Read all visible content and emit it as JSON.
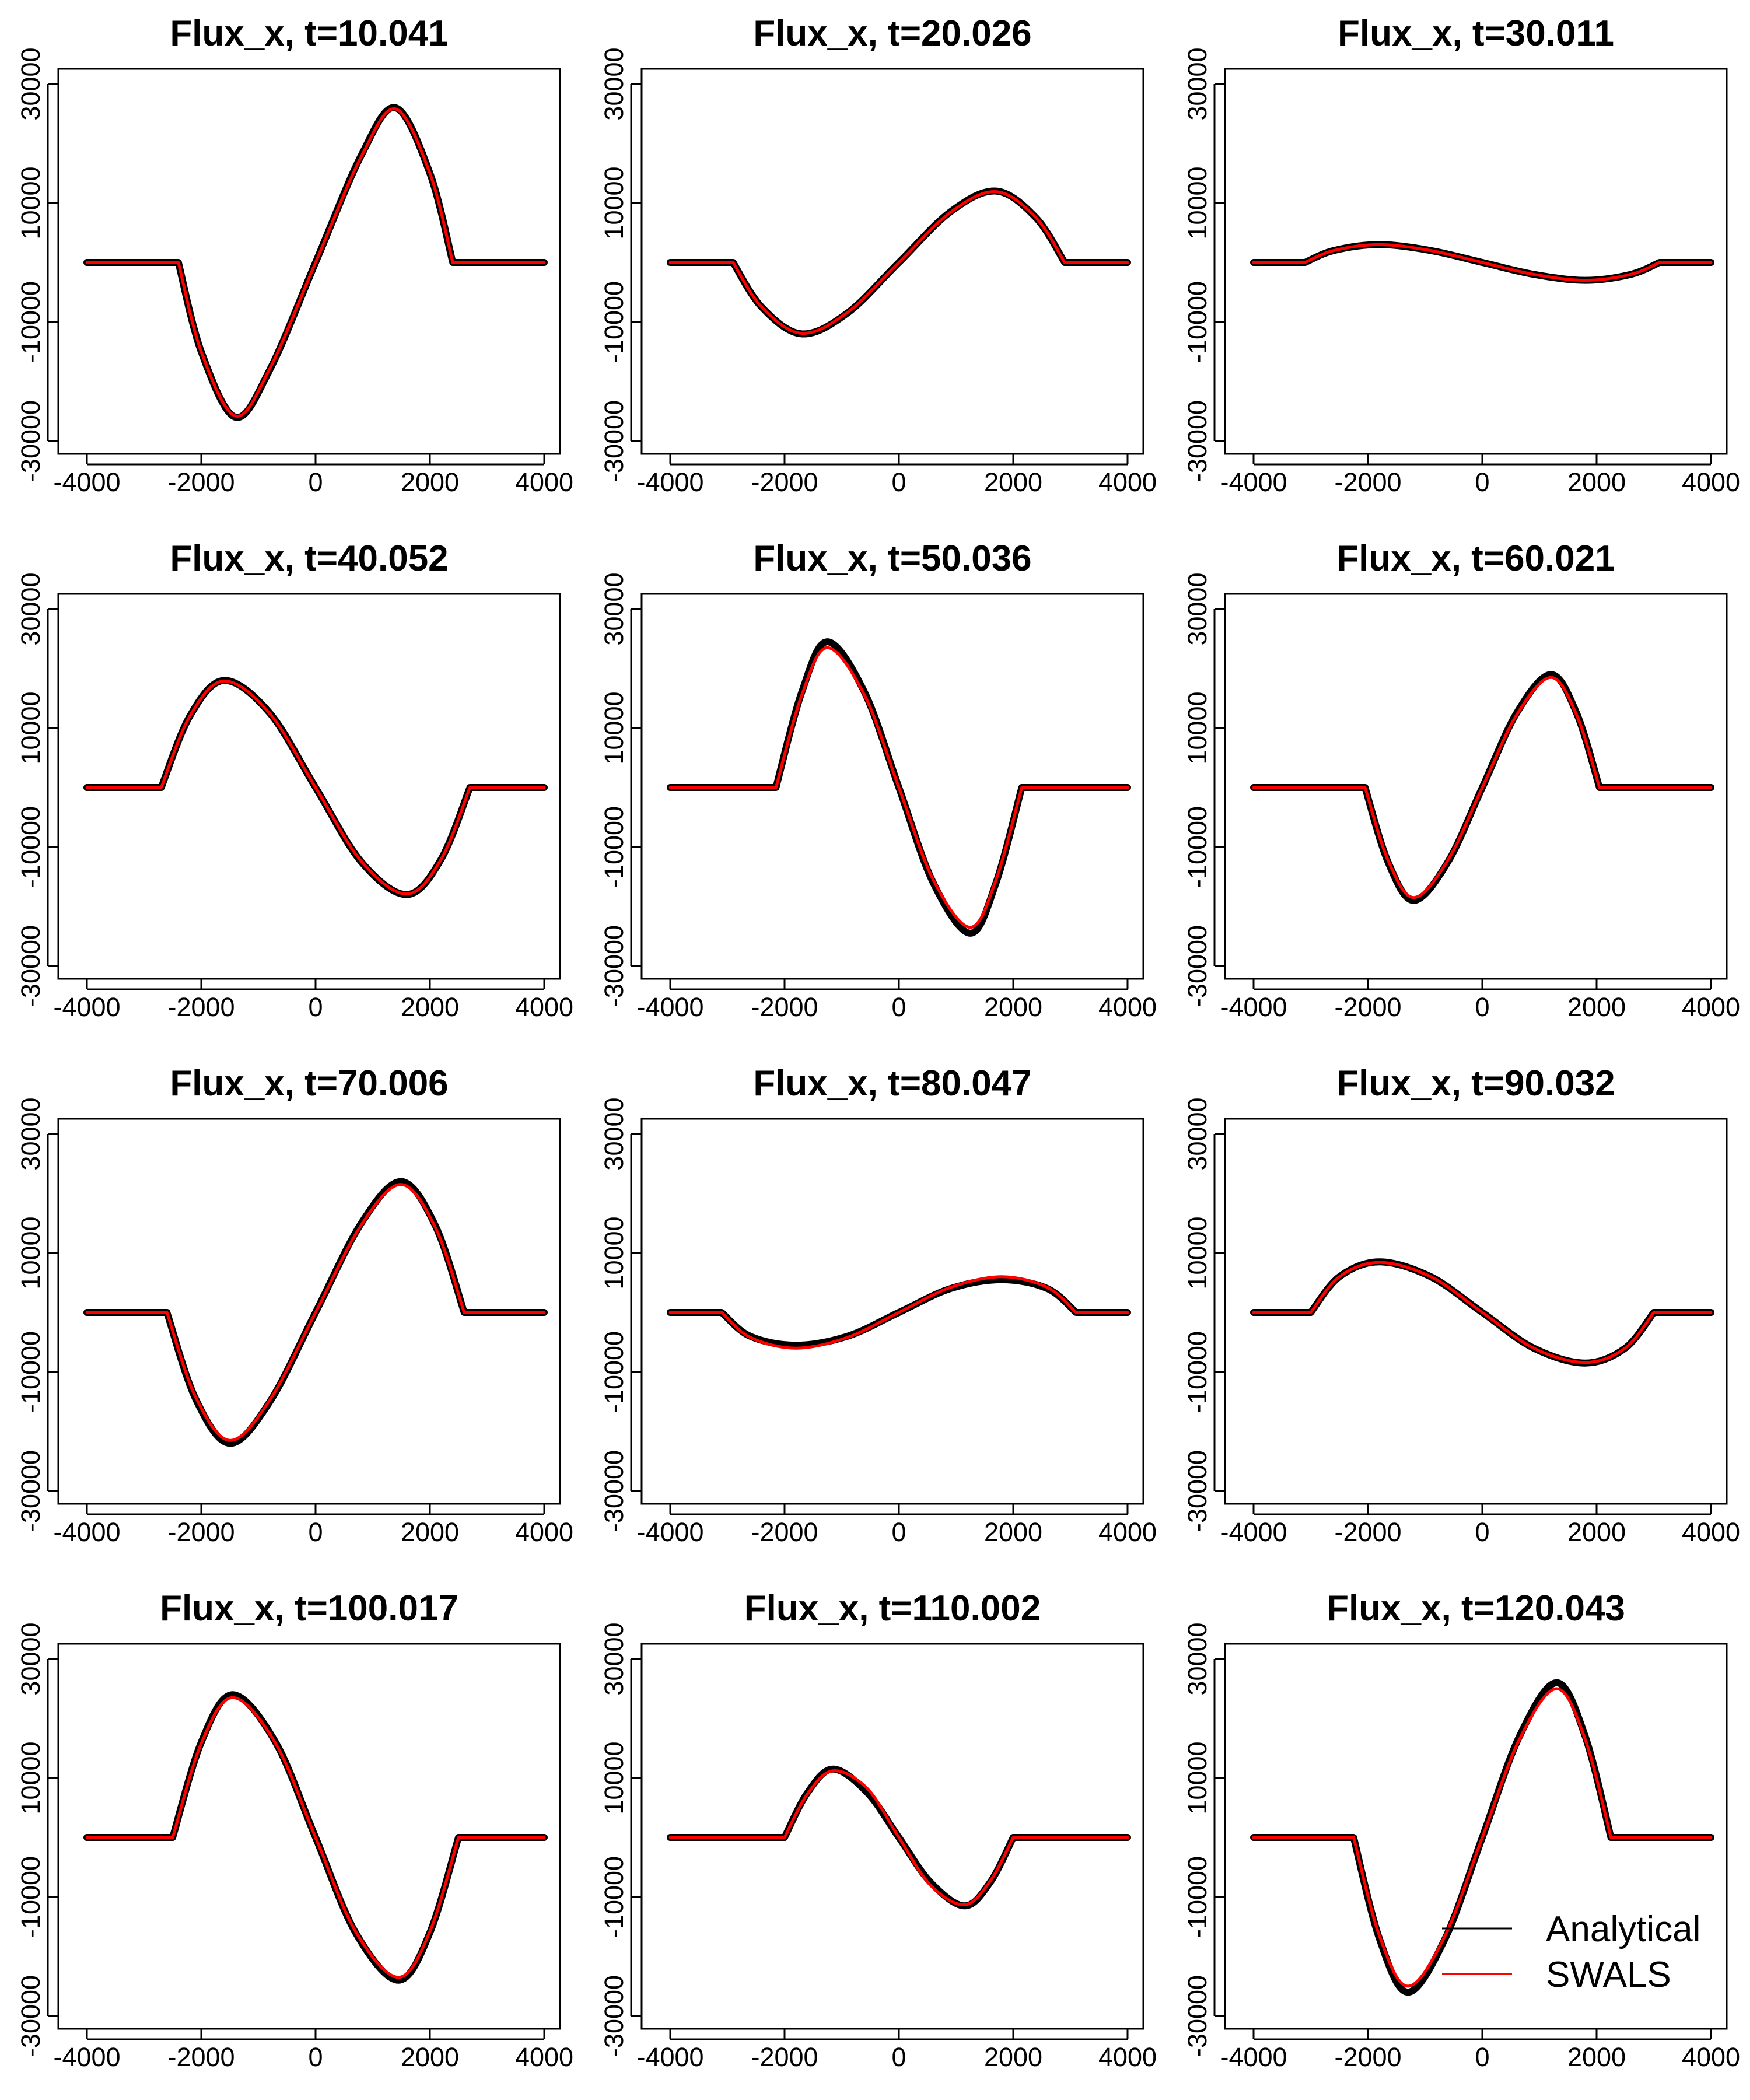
{
  "chart_data": [
    {
      "type": "line",
      "title": "Flux_x, t=10.041",
      "xticks": [
        -4000,
        -2000,
        0,
        2000,
        4000
      ],
      "yticks": [
        -30000,
        -10000,
        10000,
        30000
      ],
      "xlim": [
        -4000,
        4000
      ],
      "ylim": [
        -30000,
        30000
      ],
      "series": [
        {
          "name": "Analytical",
          "x": [
            -4000,
            -2400,
            -2000,
            -1400,
            -800,
            0,
            800,
            1400,
            2000,
            2400,
            4000
          ],
          "y": [
            0,
            0,
            -15000,
            -26000,
            -18000,
            0,
            18000,
            26000,
            15000,
            0,
            0
          ]
        },
        {
          "name": "SWALS",
          "x": [
            -4000,
            -2400,
            -2000,
            -1400,
            -800,
            0,
            800,
            1400,
            2000,
            2400,
            4000
          ],
          "y": [
            0,
            0,
            -15000,
            -25800,
            -17800,
            0,
            17800,
            25800,
            15000,
            0,
            0
          ]
        }
      ]
    },
    {
      "type": "line",
      "title": "Flux_x, t=20.026",
      "xticks": [
        -4000,
        -2000,
        0,
        2000,
        4000
      ],
      "yticks": [
        -30000,
        -10000,
        10000,
        30000
      ],
      "xlim": [
        -4000,
        4000
      ],
      "ylim": [
        -30000,
        30000
      ],
      "series": [
        {
          "name": "Analytical",
          "x": [
            -4000,
            -2900,
            -2400,
            -1700,
            -900,
            0,
            900,
            1700,
            2400,
            2900,
            4000
          ],
          "y": [
            0,
            0,
            -7500,
            -12000,
            -8500,
            0,
            8500,
            12000,
            7500,
            0,
            0
          ]
        },
        {
          "name": "SWALS",
          "x": [
            -4000,
            -2900,
            -2400,
            -1700,
            -900,
            0,
            900,
            1700,
            2400,
            2900,
            4000
          ],
          "y": [
            0,
            0,
            -7500,
            -11900,
            -8400,
            0,
            8400,
            11900,
            7500,
            0,
            0
          ]
        }
      ]
    },
    {
      "type": "line",
      "title": "Flux_x, t=30.011",
      "xticks": [
        -4000,
        -2000,
        0,
        2000,
        4000
      ],
      "yticks": [
        -30000,
        -10000,
        10000,
        30000
      ],
      "xlim": [
        -4000,
        4000
      ],
      "ylim": [
        -30000,
        30000
      ],
      "series": [
        {
          "name": "Analytical",
          "x": [
            -4000,
            -3100,
            -2600,
            -1800,
            -900,
            0,
            900,
            1800,
            2600,
            3100,
            4000
          ],
          "y": [
            0,
            0,
            2000,
            3000,
            2000,
            0,
            -2000,
            -3000,
            -2000,
            0,
            0
          ]
        },
        {
          "name": "SWALS",
          "x": [
            -4000,
            -3100,
            -2600,
            -1800,
            -900,
            0,
            900,
            1800,
            2600,
            3100,
            4000
          ],
          "y": [
            0,
            0,
            2000,
            3000,
            2000,
            0,
            -2000,
            -3000,
            -2000,
            0,
            0
          ]
        }
      ]
    },
    {
      "type": "line",
      "title": "Flux_x, t=40.052",
      "xticks": [
        -4000,
        -2000,
        0,
        2000,
        4000
      ],
      "yticks": [
        -30000,
        -10000,
        10000,
        30000
      ],
      "xlim": [
        -4000,
        4000
      ],
      "ylim": [
        -30000,
        30000
      ],
      "series": [
        {
          "name": "Analytical",
          "x": [
            -4000,
            -2700,
            -2200,
            -1600,
            -800,
            0,
            800,
            1600,
            2200,
            2700,
            4000
          ],
          "y": [
            0,
            0,
            12000,
            18000,
            12500,
            0,
            -12500,
            -18000,
            -12000,
            0,
            0
          ]
        },
        {
          "name": "SWALS",
          "x": [
            -4000,
            -2700,
            -2200,
            -1600,
            -800,
            0,
            800,
            1600,
            2200,
            2700,
            4000
          ],
          "y": [
            0,
            0,
            12000,
            17900,
            12400,
            0,
            -12400,
            -17900,
            -12000,
            0,
            0
          ]
        }
      ]
    },
    {
      "type": "line",
      "title": "Flux_x, t=50.036",
      "xticks": [
        -4000,
        -2000,
        0,
        2000,
        4000
      ],
      "yticks": [
        -30000,
        -10000,
        10000,
        30000
      ],
      "xlim": [
        -4000,
        4000
      ],
      "ylim": [
        -30000,
        30000
      ],
      "series": [
        {
          "name": "Analytical",
          "x": [
            -4000,
            -2150,
            -1700,
            -1250,
            -600,
            0,
            600,
            1250,
            1700,
            2150,
            4000
          ],
          "y": [
            0,
            0,
            16000,
            24500,
            16000,
            0,
            -16000,
            -24500,
            -16000,
            0,
            0
          ]
        },
        {
          "name": "SWALS",
          "x": [
            -4000,
            -2150,
            -1700,
            -1250,
            -600,
            0,
            600,
            1250,
            1700,
            2150,
            4000
          ],
          "y": [
            0,
            0,
            15500,
            23500,
            15500,
            0,
            -15500,
            -23500,
            -15500,
            0,
            0
          ]
        }
      ]
    },
    {
      "type": "line",
      "title": "Flux_x, t=60.021",
      "xticks": [
        -4000,
        -2000,
        0,
        2000,
        4000
      ],
      "yticks": [
        -30000,
        -10000,
        10000,
        30000
      ],
      "xlim": [
        -4000,
        4000
      ],
      "ylim": [
        -30000,
        30000
      ],
      "series": [
        {
          "name": "Analytical",
          "x": [
            -4000,
            -2050,
            -1650,
            -1200,
            -600,
            0,
            600,
            1200,
            1650,
            2050,
            4000
          ],
          "y": [
            0,
            0,
            -12500,
            -19000,
            -12500,
            0,
            12500,
            19000,
            12500,
            0,
            0
          ]
        },
        {
          "name": "SWALS",
          "x": [
            -4000,
            -2050,
            -1650,
            -1200,
            -600,
            0,
            600,
            1200,
            1650,
            2050,
            4000
          ],
          "y": [
            0,
            0,
            -12200,
            -18500,
            -12200,
            0,
            12200,
            18500,
            12200,
            0,
            0
          ]
        }
      ]
    },
    {
      "type": "line",
      "title": "Flux_x, t=70.006",
      "xticks": [
        -4000,
        -2000,
        0,
        2000,
        4000
      ],
      "yticks": [
        -30000,
        -10000,
        10000,
        30000
      ],
      "xlim": [
        -4000,
        4000
      ],
      "ylim": [
        -30000,
        30000
      ],
      "series": [
        {
          "name": "Analytical",
          "x": [
            -4000,
            -2600,
            -2100,
            -1500,
            -800,
            0,
            800,
            1500,
            2100,
            2600,
            4000
          ],
          "y": [
            0,
            0,
            -14500,
            -22000,
            -15000,
            0,
            15000,
            22000,
            14500,
            0,
            0
          ]
        },
        {
          "name": "SWALS",
          "x": [
            -4000,
            -2600,
            -2100,
            -1500,
            -800,
            0,
            800,
            1500,
            2100,
            2600,
            4000
          ],
          "y": [
            0,
            0,
            -14200,
            -21500,
            -14700,
            0,
            14700,
            21500,
            14200,
            0,
            0
          ]
        }
      ]
    },
    {
      "type": "line",
      "title": "Flux_x, t=80.047",
      "xticks": [
        -4000,
        -2000,
        0,
        2000,
        4000
      ],
      "yticks": [
        -30000,
        -10000,
        10000,
        30000
      ],
      "xlim": [
        -4000,
        4000
      ],
      "ylim": [
        -30000,
        30000
      ],
      "series": [
        {
          "name": "Analytical",
          "x": [
            -4000,
            -3100,
            -2600,
            -1800,
            -900,
            0,
            900,
            1800,
            2600,
            3100,
            4000
          ],
          "y": [
            0,
            0,
            -4000,
            -5500,
            -4000,
            0,
            4000,
            5500,
            4000,
            0,
            0
          ]
        },
        {
          "name": "SWALS",
          "x": [
            -4000,
            -3100,
            -2600,
            -1800,
            -900,
            0,
            900,
            1800,
            2600,
            3100,
            4000
          ],
          "y": [
            0,
            0,
            -4200,
            -6000,
            -4200,
            0,
            4200,
            6000,
            4200,
            0,
            0
          ]
        }
      ]
    },
    {
      "type": "line",
      "title": "Flux_x, t=90.032",
      "xticks": [
        -4000,
        -2000,
        0,
        2000,
        4000
      ],
      "yticks": [
        -30000,
        -10000,
        10000,
        30000
      ],
      "xlim": [
        -4000,
        4000
      ],
      "ylim": [
        -30000,
        30000
      ],
      "series": [
        {
          "name": "Analytical",
          "x": [
            -4000,
            -3000,
            -2500,
            -1800,
            -900,
            0,
            900,
            1800,
            2500,
            3000,
            4000
          ],
          "y": [
            0,
            0,
            6000,
            8500,
            6000,
            0,
            -6000,
            -8500,
            -6000,
            0,
            0
          ]
        },
        {
          "name": "SWALS",
          "x": [
            -4000,
            -3000,
            -2500,
            -1800,
            -900,
            0,
            900,
            1800,
            2500,
            3000,
            4000
          ],
          "y": [
            0,
            0,
            6000,
            8400,
            6000,
            0,
            -6000,
            -8400,
            -6000,
            0,
            0
          ]
        }
      ]
    },
    {
      "type": "line",
      "title": "Flux_x, t=100.017",
      "xticks": [
        -4000,
        -2000,
        0,
        2000,
        4000
      ],
      "yticks": [
        -30000,
        -10000,
        10000,
        30000
      ],
      "xlim": [
        -4000,
        4000
      ],
      "ylim": [
        -30000,
        30000
      ],
      "series": [
        {
          "name": "Analytical",
          "x": [
            -4000,
            -2500,
            -2000,
            -1450,
            -700,
            0,
            700,
            1450,
            2000,
            2500,
            4000
          ],
          "y": [
            0,
            0,
            16000,
            24000,
            16000,
            0,
            -16000,
            -24000,
            -16000,
            0,
            0
          ]
        },
        {
          "name": "SWALS",
          "x": [
            -4000,
            -2500,
            -2000,
            -1450,
            -700,
            0,
            700,
            1450,
            2000,
            2500,
            4000
          ],
          "y": [
            0,
            0,
            15800,
            23500,
            15800,
            0,
            -15800,
            -23500,
            -15800,
            0,
            0
          ]
        }
      ]
    },
    {
      "type": "line",
      "title": "Flux_x, t=110.002",
      "xticks": [
        -4000,
        -2000,
        0,
        2000,
        4000
      ],
      "yticks": [
        -30000,
        -10000,
        10000,
        30000
      ],
      "xlim": [
        -4000,
        4000
      ],
      "ylim": [
        -30000,
        30000
      ],
      "series": [
        {
          "name": "Analytical",
          "x": [
            -4000,
            -2000,
            -1600,
            -1150,
            -550,
            0,
            550,
            1150,
            1600,
            2000,
            4000
          ],
          "y": [
            0,
            0,
            7500,
            11500,
            7500,
            0,
            -7500,
            -11500,
            -7500,
            0,
            0
          ]
        },
        {
          "name": "SWALS",
          "x": [
            -4000,
            -2000,
            -1600,
            -1150,
            -550,
            0,
            550,
            1150,
            1600,
            2000,
            4000
          ],
          "y": [
            0,
            0,
            7300,
            11200,
            8200,
            0,
            -8000,
            -11300,
            -7300,
            0,
            0
          ]
        }
      ]
    },
    {
      "type": "line",
      "title": "Flux_x, t=120.043",
      "xticks": [
        -4000,
        -2000,
        0,
        2000,
        4000
      ],
      "yticks": [
        -30000,
        -10000,
        10000,
        30000
      ],
      "xlim": [
        -4000,
        4000
      ],
      "ylim": [
        -30000,
        30000
      ],
      "series": [
        {
          "name": "Analytical",
          "x": [
            -4000,
            -2250,
            -1800,
            -1300,
            -650,
            0,
            650,
            1300,
            1800,
            2250,
            4000
          ],
          "y": [
            0,
            0,
            -17000,
            -26000,
            -17000,
            0,
            17000,
            26000,
            17000,
            0,
            0
          ]
        },
        {
          "name": "SWALS",
          "x": [
            -4000,
            -2250,
            -1800,
            -1300,
            -650,
            0,
            650,
            1300,
            1800,
            2250,
            4000
          ],
          "y": [
            0,
            0,
            -16500,
            -25000,
            -16500,
            0,
            16500,
            25000,
            16500,
            0,
            0
          ]
        }
      ]
    }
  ],
  "legend": {
    "items": [
      {
        "label": "Analytical",
        "color": "#000000"
      },
      {
        "label": "SWALS",
        "color": "#ff0000"
      }
    ]
  }
}
